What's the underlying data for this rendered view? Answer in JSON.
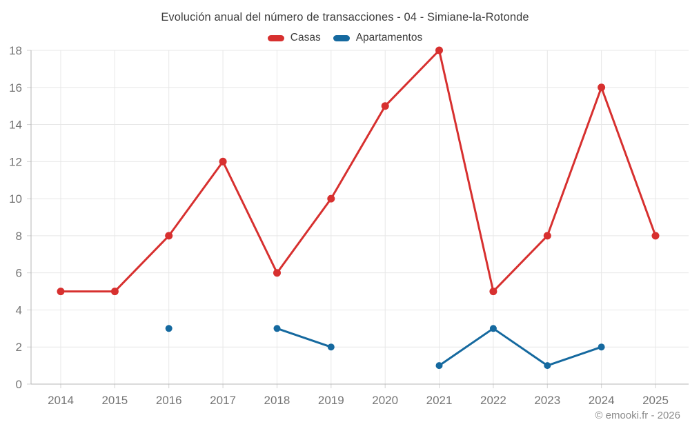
{
  "page": {
    "copyright": "© emooki.fr - 2026"
  },
  "chart_data": {
    "type": "line",
    "title": "Evolución anual del número de transacciones - 04 - Simiane-la-Rotonde",
    "categories": [
      "2014",
      "2015",
      "2016",
      "2017",
      "2018",
      "2019",
      "2020",
      "2021",
      "2022",
      "2023",
      "2024",
      "2025"
    ],
    "series": [
      {
        "name": "Casas",
        "color": "#d7302f",
        "point_radius": 5.5,
        "values": [
          5,
          5,
          8,
          12,
          6,
          10,
          15,
          18,
          5,
          8,
          16,
          8
        ]
      },
      {
        "name": "Apartamentos",
        "color": "#15699f",
        "point_radius": 5,
        "values": [
          null,
          null,
          3,
          null,
          3,
          2,
          null,
          1,
          3,
          1,
          2,
          null
        ]
      }
    ],
    "xlabel": "",
    "ylabel": "",
    "ylim": [
      0,
      18
    ],
    "ytick_step": 2,
    "grid": true,
    "span_gaps": false,
    "legend_position": "top",
    "style": {
      "grid_color": "#e7e7e7",
      "axis_color": "#b5b5b5",
      "tick_mark_color": "#d2d2d2",
      "tick_label_color": "#757575",
      "title_color": "#3e3e3e",
      "background": "#ffffff"
    }
  }
}
